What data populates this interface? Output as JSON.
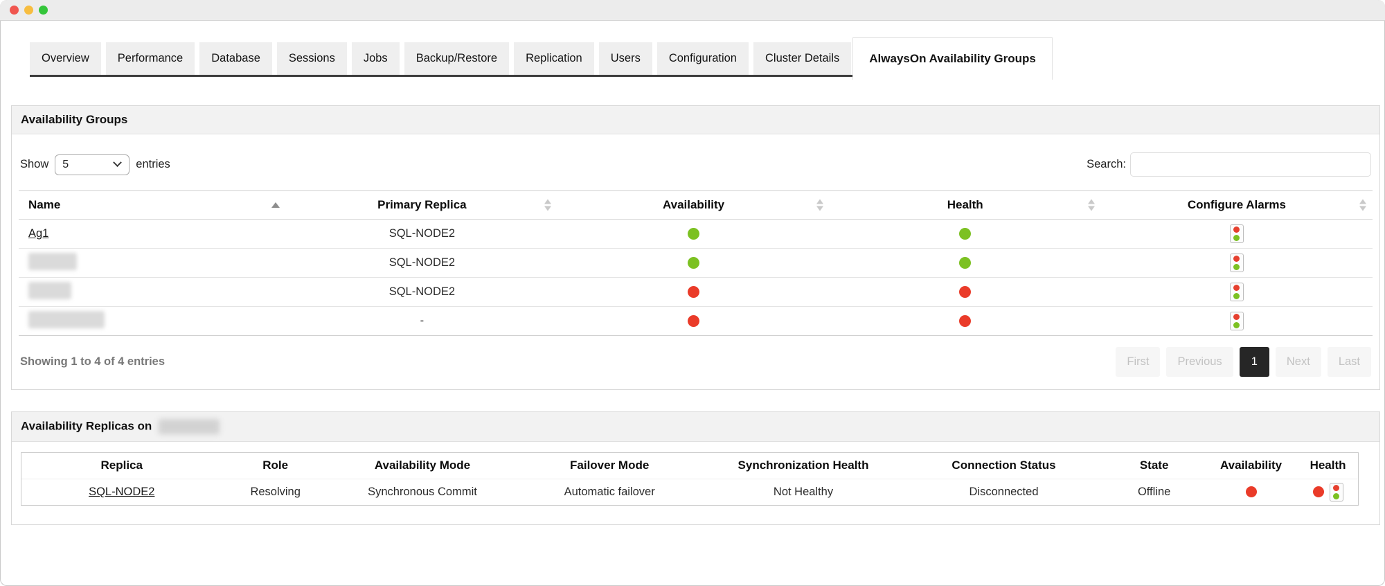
{
  "window": {
    "traffic_lights": {
      "close": "#f0564f",
      "minimize": "#f7bd40",
      "maximize": "#34c53a"
    }
  },
  "tabs": {
    "items": [
      {
        "label": "Overview",
        "active": false
      },
      {
        "label": "Performance",
        "active": false
      },
      {
        "label": "Database",
        "active": false
      },
      {
        "label": "Sessions",
        "active": false
      },
      {
        "label": "Jobs",
        "active": false
      },
      {
        "label": "Backup/Restore",
        "active": false
      },
      {
        "label": "Replication",
        "active": false
      },
      {
        "label": "Users",
        "active": false
      },
      {
        "label": "Configuration",
        "active": false
      },
      {
        "label": "Cluster Details",
        "active": false
      },
      {
        "label": "AlwaysOn Availability Groups",
        "active": true
      }
    ]
  },
  "groups_panel": {
    "title": "Availability Groups",
    "show_label": "Show",
    "page_size": "5",
    "entries_label": "entries",
    "search_label": "Search:",
    "search_value": "",
    "table": {
      "columns": [
        {
          "label": "Name",
          "sort": "asc"
        },
        {
          "label": "Primary Replica",
          "sort": "both"
        },
        {
          "label": "Availability",
          "sort": "both"
        },
        {
          "label": "Health",
          "sort": "both"
        },
        {
          "label": "Configure Alarms",
          "sort": "both"
        }
      ],
      "rows": [
        {
          "name": "Ag1",
          "name_redacted": false,
          "primary_replica": "SQL-NODE2",
          "availability": "green",
          "health": "green"
        },
        {
          "name": "",
          "name_redacted": true,
          "primary_replica": "SQL-NODE2",
          "availability": "green",
          "health": "green"
        },
        {
          "name": "",
          "name_redacted": true,
          "primary_replica": "SQL-NODE2",
          "availability": "red",
          "health": "red"
        },
        {
          "name": "",
          "name_redacted": true,
          "primary_replica": "-",
          "availability": "red",
          "health": "red"
        }
      ]
    },
    "summary": "Showing 1 to 4 of 4 entries",
    "pagination": {
      "first": "First",
      "previous": "Previous",
      "current": "1",
      "next": "Next",
      "last": "Last"
    }
  },
  "replicas_panel": {
    "title_prefix": "Availability Replicas on",
    "server_redacted": true,
    "table": {
      "columns": [
        {
          "label": "Replica"
        },
        {
          "label": "Role"
        },
        {
          "label": "Availability Mode"
        },
        {
          "label": "Failover Mode"
        },
        {
          "label": "Synchronization Health"
        },
        {
          "label": "Connection Status"
        },
        {
          "label": "State"
        },
        {
          "label": "Availability"
        },
        {
          "label": "Health"
        }
      ],
      "rows": [
        {
          "replica": "SQL-NODE2",
          "role": "Resolving",
          "availability_mode": "Synchronous Commit",
          "failover_mode": "Automatic failover",
          "synchronization_health": "Not Healthy",
          "connection_status": "Disconnected",
          "state": "Offline",
          "availability": "red",
          "health": "red"
        }
      ]
    }
  },
  "colors": {
    "status_green": "#7cc122",
    "status_red": "#ea3b29"
  }
}
